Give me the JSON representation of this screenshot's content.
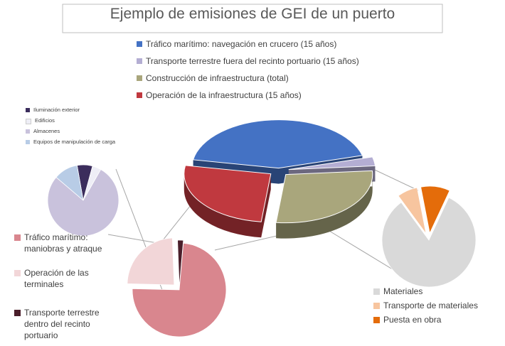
{
  "chart_data": [
    {
      "type": "pie",
      "title": "Ejemplo de emisiones de GEI de un puerto",
      "categories": [
        "Tráfico marítimo: navegación en crucero (15 años)",
        "Transporte terrestre fuera del recinto portuario (15 años)",
        "Construcción de infraestructura (total)",
        "Operación de la infraestructura (15 años)"
      ],
      "values": [
        43,
        3,
        28,
        26
      ],
      "colors": [
        "#4472c4",
        "#b4aed3",
        "#a9a67c",
        "#c0393f"
      ]
    },
    {
      "type": "pie",
      "categories": [
        "Iluminación exterior",
        "Edificios",
        "Almacenes",
        "Equipos de manipulación de carga"
      ],
      "values": [
        7,
        4,
        78,
        11
      ],
      "colors": [
        "#3b2d5c",
        "#eeeef6",
        "#c9c2dc",
        "#b8cce6"
      ]
    },
    {
      "type": "pie",
      "categories": [
        "Tráfico marítimo: maniobras y atraque",
        "Operación de las terminales",
        "Transporte terrestre dentro del recinto portuario"
      ],
      "values": [
        74,
        24,
        2
      ],
      "colors": [
        "#d9868e",
        "#f2d6d8",
        "#4a1e2a"
      ]
    },
    {
      "type": "pie",
      "categories": [
        "Materiales",
        "Transporte de materiales",
        "Puesta en obra"
      ],
      "values": [
        83,
        7,
        10
      ],
      "colors": [
        "#d9d9d9",
        "#f7c59f",
        "#e46c0a"
      ]
    }
  ]
}
